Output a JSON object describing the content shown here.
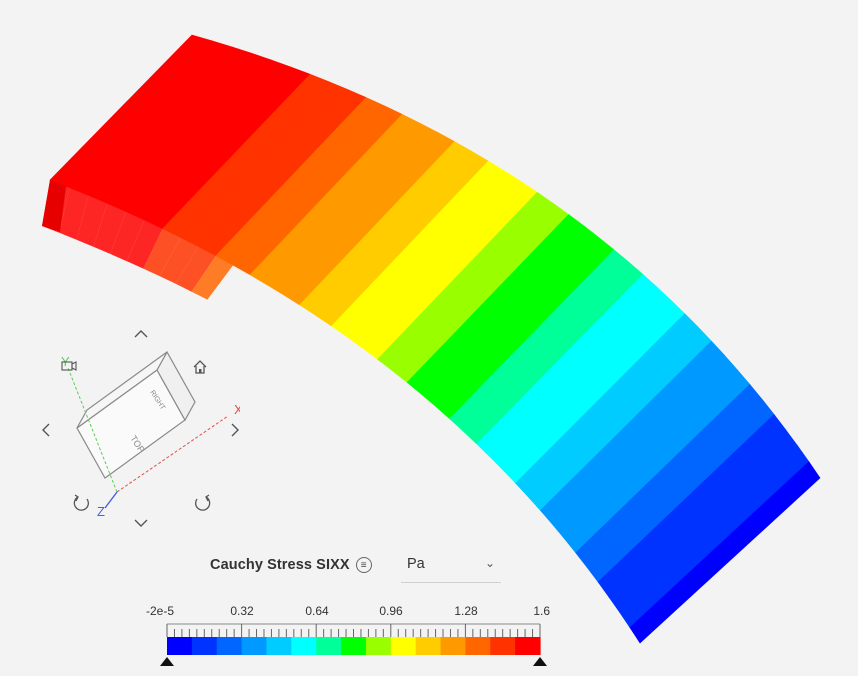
{
  "viewcube": {
    "axes": {
      "x": "X",
      "y": "Y",
      "z": "Z"
    },
    "faces": {
      "top": "TOP",
      "right": "RIGHT"
    },
    "colors": {
      "x": "#e05050",
      "y": "#5ccc5c",
      "z": "#4a5ee0"
    }
  },
  "legend": {
    "field_name": "Cauchy Stress SIXX",
    "menu_icon": "list-icon",
    "unit": "Pa",
    "min_label": "-2e-5",
    "max_label": "1.6",
    "tick_labels": [
      "0.32",
      "0.64",
      "0.96",
      "1.28"
    ],
    "range": [
      -2e-05,
      1.6
    ],
    "palette": [
      "#0000ff",
      "#0033ff",
      "#0066ff",
      "#0099ff",
      "#00ccff",
      "#00ffff",
      "#00ff99",
      "#00ff00",
      "#99ff00",
      "#ffff00",
      "#ffcc00",
      "#ff9900",
      "#ff6600",
      "#ff3300",
      "#ff0000"
    ]
  }
}
